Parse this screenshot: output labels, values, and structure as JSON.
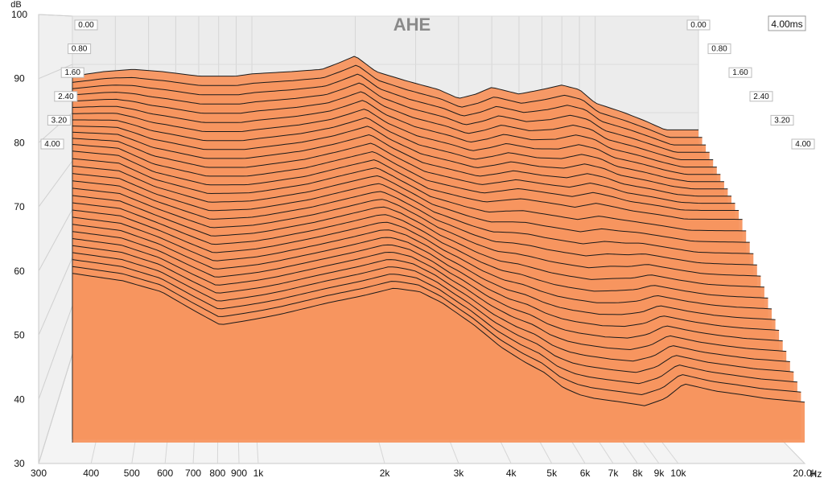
{
  "chart_data": {
    "type": "waterfall",
    "title": "AHE",
    "time_badge": "4.00ms",
    "ylabel": "dB",
    "xlabel": "Hz",
    "x_scale": "log",
    "xlim": [
      300,
      20000
    ],
    "ylim": [
      30,
      100
    ],
    "y_ticks": [
      "30",
      "40",
      "50",
      "60",
      "70",
      "80",
      "90",
      "100"
    ],
    "x_ticks": [
      {
        "value": 300,
        "label": "300"
      },
      {
        "value": 400,
        "label": "400"
      },
      {
        "value": 500,
        "label": "500"
      },
      {
        "value": 600,
        "label": "600"
      },
      {
        "value": 700,
        "label": "700"
      },
      {
        "value": 800,
        "label": "800"
      },
      {
        "value": 900,
        "label": "900"
      },
      {
        "value": 1000,
        "label": "1k"
      },
      {
        "value": 2000,
        "label": "2k"
      },
      {
        "value": 3000,
        "label": "3k"
      },
      {
        "value": 4000,
        "label": "4k"
      },
      {
        "value": 5000,
        "label": "5k"
      },
      {
        "value": 6000,
        "label": "6k"
      },
      {
        "value": 7000,
        "label": "7k"
      },
      {
        "value": 8000,
        "label": "8k"
      },
      {
        "value": 9000,
        "label": "9k"
      },
      {
        "value": 10000,
        "label": "10k"
      },
      {
        "value": 20000,
        "label": "20.0k"
      }
    ],
    "time_ticks": [
      "0.00",
      "0.80",
      "1.60",
      "2.40",
      "3.20",
      "4.00"
    ],
    "time_range_ms": [
      0,
      4.0
    ],
    "slice_count": 30,
    "fill_color": "#f7955f",
    "line_color": "#1a1a1a",
    "slices": [
      {
        "t": 0.0,
        "points": [
          [
            300,
            92
          ],
          [
            370,
            93
          ],
          [
            450,
            93.5
          ],
          [
            550,
            93
          ],
          [
            700,
            92
          ],
          [
            900,
            92
          ],
          [
            1000,
            92.5
          ],
          [
            1300,
            93
          ],
          [
            1600,
            93.5
          ],
          [
            1800,
            95
          ],
          [
            2000,
            96.5
          ],
          [
            2300,
            93
          ],
          [
            2800,
            91
          ],
          [
            3500,
            89
          ],
          [
            4000,
            87
          ],
          [
            4500,
            88
          ],
          [
            5000,
            89.5
          ],
          [
            6000,
            88
          ],
          [
            7000,
            89
          ],
          [
            8000,
            90
          ],
          [
            9000,
            89
          ],
          [
            10000,
            86
          ],
          [
            12000,
            84
          ],
          [
            14000,
            82
          ],
          [
            16000,
            80
          ],
          [
            20000,
            80
          ]
        ]
      },
      {
        "t": 1.6,
        "points": [
          [
            300,
            88
          ],
          [
            400,
            87
          ],
          [
            500,
            83
          ],
          [
            700,
            80
          ],
          [
            900,
            80
          ],
          [
            1000,
            80.5
          ],
          [
            1300,
            82
          ],
          [
            1600,
            84
          ],
          [
            2000,
            86
          ],
          [
            2300,
            83
          ],
          [
            2800,
            79
          ],
          [
            3500,
            77
          ],
          [
            4000,
            76
          ],
          [
            5000,
            77
          ],
          [
            6000,
            76
          ],
          [
            7000,
            75
          ],
          [
            8000,
            76
          ],
          [
            9000,
            75
          ],
          [
            10000,
            74
          ],
          [
            12000,
            73
          ],
          [
            14000,
            72
          ],
          [
            20000,
            72
          ]
        ]
      },
      {
        "t": 4.0,
        "points": [
          [
            300,
            76
          ],
          [
            400,
            74
          ],
          [
            500,
            71
          ],
          [
            600,
            66
          ],
          [
            700,
            62
          ],
          [
            800,
            63
          ],
          [
            900,
            64
          ],
          [
            1000,
            65
          ],
          [
            1300,
            68
          ],
          [
            1600,
            70
          ],
          [
            1900,
            72
          ],
          [
            2200,
            71
          ],
          [
            2500,
            68
          ],
          [
            3000,
            62
          ],
          [
            3500,
            56
          ],
          [
            4000,
            52
          ],
          [
            4500,
            49
          ],
          [
            5000,
            45
          ],
          [
            5500,
            43
          ],
          [
            6000,
            42
          ],
          [
            7000,
            41
          ],
          [
            8000,
            40
          ],
          [
            9000,
            42
          ],
          [
            10000,
            46
          ],
          [
            12000,
            44
          ],
          [
            14000,
            43
          ],
          [
            16000,
            42
          ],
          [
            20000,
            41
          ]
        ]
      }
    ]
  }
}
